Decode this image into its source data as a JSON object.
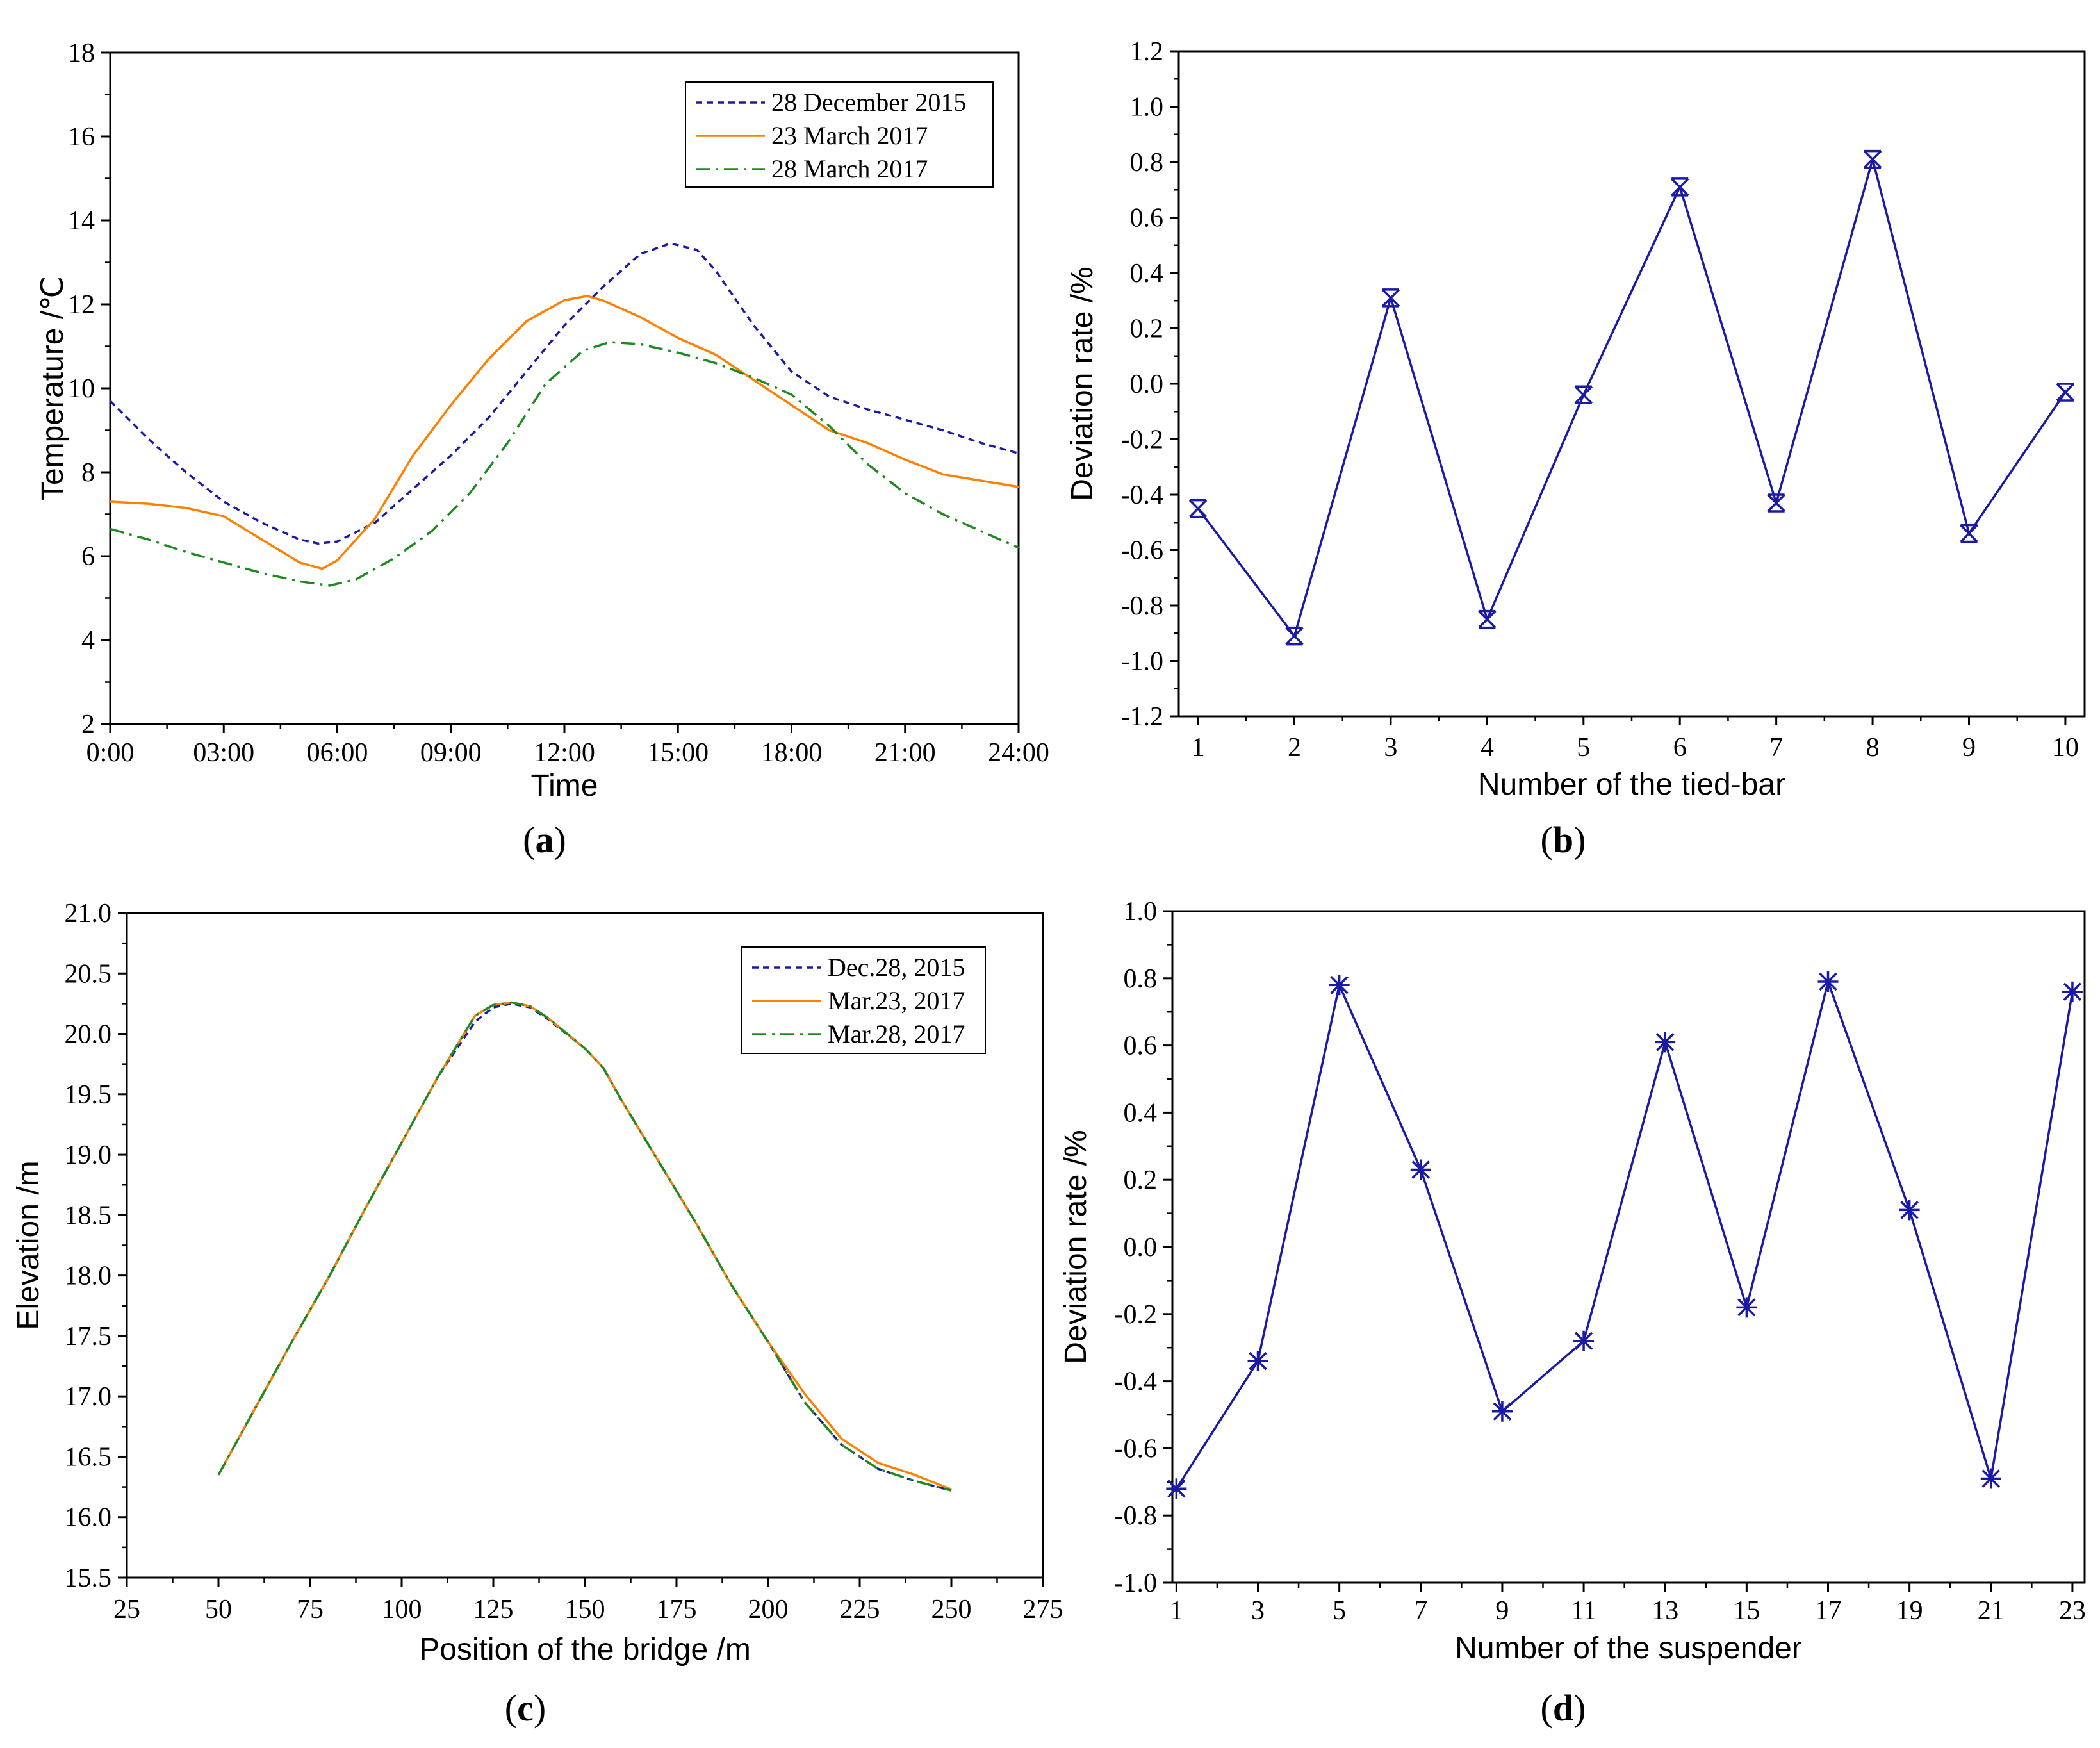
{
  "colors": {
    "blue": "#1a1aa6",
    "orange": "#ff8000",
    "green": "#1f8a1f",
    "marker": "#1a1aa6"
  },
  "chart_data": [
    {
      "id": "a",
      "type": "line",
      "caption_letter": "a",
      "xlabel": "Time",
      "ylabel": "Temperature /℃",
      "xlim": [
        0,
        24
      ],
      "ylim": [
        2,
        18
      ],
      "xticks": [
        0,
        3,
        6,
        9,
        12,
        15,
        18,
        21,
        24
      ],
      "xtick_labels": [
        "0:00",
        "03:00",
        "06:00",
        "09:00",
        "12:00",
        "15:00",
        "18:00",
        "21:00",
        "24:00"
      ],
      "yticks": [
        2,
        4,
        6,
        8,
        10,
        12,
        14,
        16,
        18
      ],
      "ytick_labels": [
        "2",
        "4",
        "6",
        "8",
        "10",
        "12",
        "14",
        "16",
        "18"
      ],
      "legend": "top-right",
      "series": [
        {
          "name": "28 December 2015",
          "style": "dash",
          "color": "blue",
          "x": [
            0,
            1,
            2,
            3,
            4,
            5,
            5.5,
            6,
            7,
            8,
            9,
            10,
            11,
            12,
            13,
            14,
            14.8,
            15.5,
            16,
            17,
            18,
            19,
            20,
            21,
            22,
            23,
            24
          ],
          "y": [
            9.7,
            8.8,
            8.0,
            7.3,
            6.8,
            6.4,
            6.3,
            6.35,
            6.8,
            7.6,
            8.4,
            9.3,
            10.4,
            11.5,
            12.4,
            13.2,
            13.45,
            13.3,
            12.8,
            11.5,
            10.4,
            9.8,
            9.5,
            9.25,
            9.0,
            8.7,
            8.45
          ]
        },
        {
          "name": "23 March 2017",
          "style": "solid",
          "color": "orange",
          "x": [
            0,
            1,
            2,
            3,
            4,
            5,
            5.6,
            6,
            7,
            8,
            9,
            10,
            11,
            12,
            12.6,
            13,
            14,
            15,
            16,
            17,
            18,
            19,
            20,
            21,
            22,
            23,
            24
          ],
          "y": [
            7.3,
            7.25,
            7.15,
            6.95,
            6.4,
            5.85,
            5.7,
            5.9,
            6.9,
            8.4,
            9.6,
            10.7,
            11.6,
            12.1,
            12.2,
            12.1,
            11.7,
            11.2,
            10.8,
            10.2,
            9.6,
            9.0,
            8.7,
            8.3,
            7.95,
            7.8,
            7.65
          ]
        },
        {
          "name": "28 March 2017",
          "style": "dashdot",
          "color": "green",
          "x": [
            0,
            1,
            2,
            3,
            4,
            5,
            5.8,
            6.5,
            7.5,
            8.5,
            9.5,
            10.5,
            11.5,
            12.5,
            13.2,
            14,
            15,
            16,
            17,
            18,
            19,
            20,
            21,
            22,
            23,
            24
          ],
          "y": [
            6.65,
            6.4,
            6.1,
            5.85,
            5.6,
            5.4,
            5.3,
            5.45,
            5.95,
            6.6,
            7.5,
            8.7,
            10.1,
            10.9,
            11.1,
            11.05,
            10.85,
            10.6,
            10.25,
            9.85,
            9.1,
            8.2,
            7.5,
            7.0,
            6.6,
            6.2
          ]
        }
      ]
    },
    {
      "id": "b",
      "type": "line",
      "caption_letter": "b",
      "xlabel": "Number of the tied-bar",
      "ylabel": "Deviation rate /%",
      "xlim": [
        0.8,
        10.2
      ],
      "ylim": [
        -1.2,
        1.2
      ],
      "xticks": [
        1,
        2,
        3,
        4,
        5,
        6,
        7,
        8,
        9,
        10
      ],
      "xtick_labels": [
        "1",
        "2",
        "3",
        "4",
        "5",
        "6",
        "7",
        "8",
        "9",
        "10"
      ],
      "yticks": [
        -1.2,
        -1.0,
        -0.8,
        -0.6,
        -0.4,
        -0.2,
        0.0,
        0.2,
        0.4,
        0.6,
        0.8,
        1.0,
        1.2
      ],
      "ytick_labels": [
        "-1.2",
        "-1.0",
        "-0.8",
        "-0.6",
        "-0.4",
        "-0.2",
        "0.0",
        "0.2",
        "0.4",
        "0.6",
        "0.8",
        "1.0",
        "1.2"
      ],
      "marker": "x-box",
      "series": [
        {
          "name": "Deviation rate",
          "color": "blue",
          "x": [
            1,
            2,
            3,
            4,
            5,
            6,
            7,
            8,
            9,
            10
          ],
          "y": [
            -0.45,
            -0.91,
            0.31,
            -0.85,
            -0.04,
            0.71,
            -0.43,
            0.81,
            -0.54,
            -0.03
          ]
        }
      ]
    },
    {
      "id": "c",
      "type": "line",
      "caption_letter": "c",
      "xlabel": "Position of the bridge /m",
      "ylabel": "Elevation /m",
      "xlim": [
        25,
        275
      ],
      "ylim": [
        15.5,
        21.0
      ],
      "xticks": [
        25,
        50,
        75,
        100,
        125,
        150,
        175,
        200,
        225,
        250,
        275
      ],
      "xtick_labels": [
        "25",
        "50",
        "75",
        "100",
        "125",
        "150",
        "175",
        "200",
        "225",
        "250",
        "275"
      ],
      "yticks": [
        15.5,
        16.0,
        16.5,
        17.0,
        17.5,
        18.0,
        18.5,
        19.0,
        19.5,
        20.0,
        20.5,
        21.0
      ],
      "ytick_labels": [
        "15.5",
        "16.0",
        "16.5",
        "17.0",
        "17.5",
        "18.0",
        "18.5",
        "19.0",
        "19.5",
        "20.0",
        "20.5",
        "21.0"
      ],
      "legend": "top-right",
      "series": [
        {
          "name": "Dec.28, 2015",
          "style": "dash",
          "color": "blue",
          "x": [
            50,
            60,
            70,
            80,
            90,
            100,
            110,
            120,
            125,
            130,
            135,
            140,
            150,
            155,
            160,
            170,
            180,
            190,
            200,
            210,
            220,
            230,
            240,
            250
          ],
          "y": [
            16.35,
            16.9,
            17.45,
            17.98,
            18.55,
            19.1,
            19.65,
            20.1,
            20.22,
            20.25,
            20.22,
            20.12,
            19.88,
            19.72,
            19.45,
            18.95,
            18.45,
            17.92,
            17.45,
            16.95,
            16.6,
            16.4,
            16.3,
            16.22
          ]
        },
        {
          "name": "Mar.23, 2017",
          "style": "solid",
          "color": "orange",
          "x": [
            50,
            60,
            70,
            80,
            90,
            100,
            110,
            120,
            125,
            130,
            135,
            140,
            150,
            155,
            160,
            170,
            180,
            190,
            200,
            210,
            220,
            230,
            240,
            250
          ],
          "y": [
            16.35,
            16.9,
            17.45,
            17.98,
            18.55,
            19.1,
            19.65,
            20.15,
            20.24,
            20.26,
            20.23,
            20.13,
            19.88,
            19.72,
            19.45,
            18.95,
            18.45,
            17.92,
            17.45,
            17.02,
            16.65,
            16.45,
            16.35,
            16.23
          ]
        },
        {
          "name": "Mar.28, 2017",
          "style": "dashdot",
          "color": "green",
          "x": [
            50,
            60,
            70,
            80,
            90,
            100,
            110,
            120,
            125,
            130,
            135,
            140,
            150,
            155,
            160,
            170,
            180,
            190,
            200,
            210,
            220,
            230,
            240,
            250
          ],
          "y": [
            16.35,
            16.9,
            17.45,
            17.98,
            18.55,
            19.1,
            19.65,
            20.15,
            20.24,
            20.26,
            20.23,
            20.13,
            19.88,
            19.72,
            19.45,
            18.95,
            18.45,
            17.92,
            17.45,
            16.95,
            16.6,
            16.4,
            16.3,
            16.22
          ]
        }
      ]
    },
    {
      "id": "d",
      "type": "line",
      "caption_letter": "d",
      "xlabel": "Number of the suspender",
      "ylabel": "Deviation rate /%",
      "xlim": [
        0.9,
        23.3
      ],
      "ylim": [
        -1.0,
        1.0
      ],
      "xticks": [
        1,
        3,
        5,
        7,
        9,
        11,
        13,
        15,
        17,
        19,
        21,
        23
      ],
      "xtick_labels": [
        "1",
        "3",
        "5",
        "7",
        "9",
        "11",
        "13",
        "15",
        "17",
        "19",
        "21",
        "23"
      ],
      "yticks": [
        -1.0,
        -0.8,
        -0.6,
        -0.4,
        -0.2,
        0.0,
        0.2,
        0.4,
        0.6,
        0.8,
        1.0
      ],
      "ytick_labels": [
        "-1.0",
        "-0.8",
        "-0.6",
        "-0.4",
        "-0.2",
        "0.0",
        "0.2",
        "0.4",
        "0.6",
        "0.8",
        "1.0"
      ],
      "marker": "asterisk",
      "series": [
        {
          "name": "Deviation rate",
          "color": "blue",
          "x": [
            1,
            3,
            5,
            7,
            9,
            11,
            13,
            15,
            17,
            19,
            21,
            23
          ],
          "y": [
            -0.72,
            -0.34,
            0.78,
            0.23,
            -0.49,
            -0.28,
            0.61,
            -0.18,
            0.79,
            0.11,
            -0.69,
            0.76
          ]
        }
      ]
    }
  ]
}
